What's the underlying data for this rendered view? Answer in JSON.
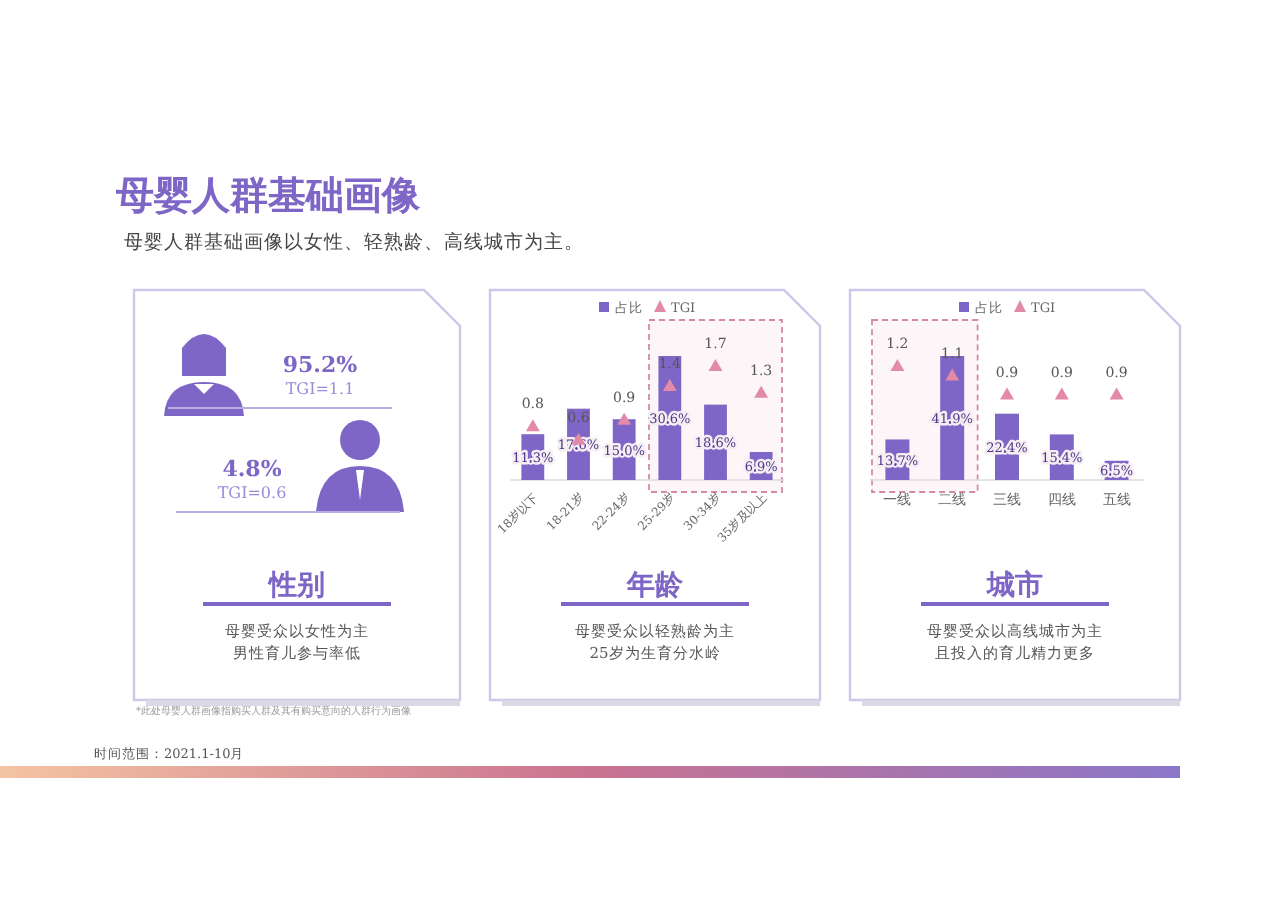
{
  "chart_data": [
    {
      "type": "other",
      "title": "母婴人群基础画像",
      "subtitle": "母婴人群基础画像以女性、轻熟龄、高线城市为主。",
      "annotations": [
        "*此处母婴人群画像指购买人群及其有购买意向的人群行为画像",
        "时间范围：2021.1-10月"
      ]
    },
    {
      "type": "other",
      "title": "性别",
      "annotations": [
        "95.2%",
        "TGI=1.1",
        "4.8%",
        "TGI=0.6",
        "母婴受众以女性为主",
        "男性育儿参与率低"
      ]
    },
    {
      "type": "bar",
      "title": "年龄",
      "categories": [
        "18岁以下",
        "18-21岁",
        "22-24岁",
        "25-29岁",
        "30-34岁",
        "35岁及以上"
      ],
      "legend": "top",
      "series": [
        {
          "name": "占比",
          "type": "bar",
          "color": "#7d66c6",
          "values": [
            11.3,
            17.6,
            15.0,
            30.6,
            18.6,
            6.9
          ],
          "value_labels": [
            "11.3%",
            "17.6%",
            "15.0%",
            "30.6%",
            "18.6%",
            "6.9%"
          ]
        },
        {
          "name": "TGI",
          "type": "scatter",
          "axis": "y2",
          "marker": "triangle",
          "color": "#e28aa8",
          "values": [
            0.8,
            0.6,
            0.9,
            1.4,
            1.7,
            1.3
          ],
          "value_labels": [
            "0.8",
            "0.6",
            "0.9",
            "1.4",
            "1.7",
            "1.3"
          ]
        }
      ],
      "bands": [
        {
          "axis": "x",
          "from": "25-29岁",
          "to": "35岁及以上",
          "color": "#d58aa2"
        }
      ],
      "annotations": [
        "母婴受众以轻熟龄为主",
        "25岁为生育分水岭"
      ]
    },
    {
      "type": "bar",
      "title": "城市",
      "categories": [
        "一线",
        "二线",
        "三线",
        "四线",
        "五线"
      ],
      "legend": "top",
      "series": [
        {
          "name": "占比",
          "type": "bar",
          "color": "#7d66c6",
          "values": [
            13.7,
            41.9,
            22.4,
            15.4,
            6.5
          ],
          "value_labels": [
            "13.7%",
            "41.9%",
            "22.4%",
            "15.4%",
            "6.5%"
          ]
        },
        {
          "name": "TGI",
          "type": "scatter",
          "axis": "y2",
          "marker": "triangle",
          "color": "#e28aa8",
          "values": [
            1.2,
            1.1,
            0.9,
            0.9,
            0.9
          ],
          "value_labels": [
            "1.2",
            "1.1",
            "0.9",
            "0.9",
            "0.9"
          ]
        }
      ],
      "bands": [
        {
          "axis": "x",
          "from": "一线",
          "to": "二线",
          "color": "#d58aa2"
        }
      ],
      "annotations": [
        "母婴受众以高线城市为主",
        "且投入的育儿精力更多"
      ]
    }
  ]
}
